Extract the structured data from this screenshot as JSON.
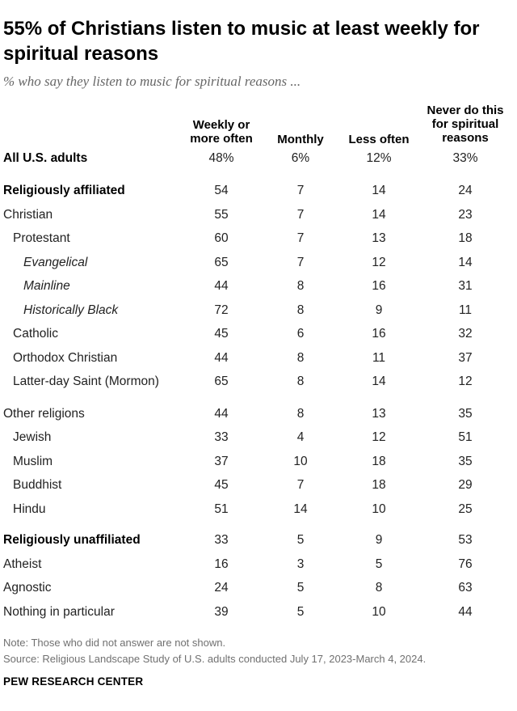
{
  "title": "55% of Christians listen to music at least weekly for spiritual reasons",
  "subtitle": "% who say they listen to music for spiritual reasons ...",
  "columns": [
    {
      "line1": "Weekly or",
      "line2": "more often",
      "line3": ""
    },
    {
      "line1": "Monthly",
      "line2": "",
      "line3": ""
    },
    {
      "line1": "Less often",
      "line2": "",
      "line3": ""
    },
    {
      "line1": "Never do this",
      "line2": "for spiritual",
      "line3": "reasons"
    }
  ],
  "chart_data": {
    "type": "table",
    "title": "55% of Christians listen to music at least weekly for spiritual reasons",
    "subtitle": "% who say they listen to music for spiritual reasons ...",
    "columns": [
      "Weekly or more often",
      "Monthly",
      "Less often",
      "Never do this for spiritual reasons"
    ],
    "rows": [
      {
        "label": "All U.S. adults",
        "values": [
          "48%",
          "6%",
          "12%",
          "33%"
        ],
        "style": "bold",
        "indent": 0
      },
      {
        "label": "Religiously affiliated",
        "values": [
          "54",
          "7",
          "14",
          "24"
        ],
        "style": "bold",
        "indent": 0
      },
      {
        "label": "Christian",
        "values": [
          "55",
          "7",
          "14",
          "23"
        ],
        "style": "normal",
        "indent": 0
      },
      {
        "label": "Protestant",
        "values": [
          "60",
          "7",
          "13",
          "18"
        ],
        "style": "normal",
        "indent": 1
      },
      {
        "label": "Evangelical",
        "values": [
          "65",
          "7",
          "12",
          "14"
        ],
        "style": "italic",
        "indent": 2
      },
      {
        "label": "Mainline",
        "values": [
          "44",
          "8",
          "16",
          "31"
        ],
        "style": "italic",
        "indent": 2
      },
      {
        "label": "Historically Black",
        "values": [
          "72",
          "8",
          "9",
          "11"
        ],
        "style": "italic",
        "indent": 2
      },
      {
        "label": "Catholic",
        "values": [
          "45",
          "6",
          "16",
          "32"
        ],
        "style": "normal",
        "indent": 1
      },
      {
        "label": "Orthodox Christian",
        "values": [
          "44",
          "8",
          "11",
          "37"
        ],
        "style": "normal",
        "indent": 1
      },
      {
        "label": "Latter-day Saint (Mormon)",
        "values": [
          "65",
          "8",
          "14",
          "12"
        ],
        "style": "normal",
        "indent": 1
      },
      {
        "label": "Other religions",
        "values": [
          "44",
          "8",
          "13",
          "35"
        ],
        "style": "normal",
        "indent": 0
      },
      {
        "label": "Jewish",
        "values": [
          "33",
          "4",
          "12",
          "51"
        ],
        "style": "normal",
        "indent": 1
      },
      {
        "label": "Muslim",
        "values": [
          "37",
          "10",
          "18",
          "35"
        ],
        "style": "normal",
        "indent": 1
      },
      {
        "label": "Buddhist",
        "values": [
          "45",
          "7",
          "18",
          "29"
        ],
        "style": "normal",
        "indent": 1
      },
      {
        "label": "Hindu",
        "values": [
          "51",
          "14",
          "10",
          "25"
        ],
        "style": "normal",
        "indent": 1
      },
      {
        "label": "Religiously unaffiliated",
        "values": [
          "33",
          "5",
          "9",
          "53"
        ],
        "style": "bold",
        "indent": 0
      },
      {
        "label": "Atheist",
        "values": [
          "16",
          "3",
          "5",
          "76"
        ],
        "style": "normal",
        "indent": 0
      },
      {
        "label": "Agnostic",
        "values": [
          "24",
          "5",
          "8",
          "63"
        ],
        "style": "normal",
        "indent": 0
      },
      {
        "label": "Nothing in particular",
        "values": [
          "39",
          "5",
          "10",
          "44"
        ],
        "style": "normal",
        "indent": 0
      }
    ]
  },
  "note": "Note: Those who did not answer are not shown.",
  "source": "Source: Religious Landscape Study of U.S. adults conducted July 17, 2023-March 4, 2024.",
  "brand": "PEW RESEARCH CENTER"
}
